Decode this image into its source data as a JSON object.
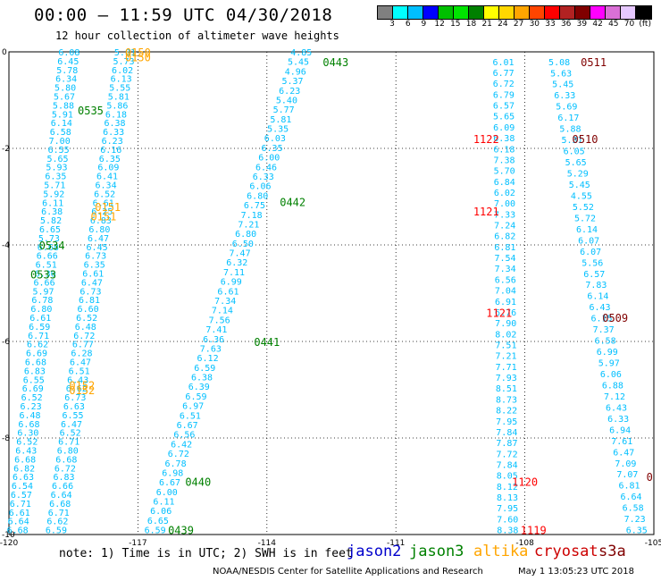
{
  "title": "00:00 – 11:59 UTC 04/30/2018",
  "subtitle": "12 hour collection of altimeter wave heights",
  "colorbar": {
    "colors": [
      "#808080",
      "#00ffff",
      "#00bfff",
      "#0000ff",
      "#00bf00",
      "#00e400",
      "#008000",
      "#ffff00",
      "#ffd700",
      "#ffa500",
      "#ff4500",
      "#ff0000",
      "#b22222",
      "#800000",
      "#ff00ff",
      "#da70d6",
      "#e6c8ff",
      "#000000"
    ],
    "labels": [
      "3",
      "6",
      "9",
      "12",
      "15",
      "18",
      "21",
      "24",
      "27",
      "30",
      "33",
      "36",
      "39",
      "42",
      "45",
      "70",
      "(ft)"
    ]
  },
  "legend": [
    {
      "name": "jason2",
      "color": "#0000cc"
    },
    {
      "name": "jason3",
      "color": "#008000"
    },
    {
      "name": "altika",
      "color": "#ffa500"
    },
    {
      "name": "cryosat",
      "color": "#cc0000"
    },
    {
      "name": "s3a",
      "color": "#800000"
    }
  ],
  "note": "note: 1) Time is in UTC; 2) SWH is in feet",
  "credit": "NOAA/NESDIS Center for Satellite Applications and Research",
  "stamp": "May  1 13:05:23 UTC 2018",
  "chart_data": {
    "type": "scatter",
    "xlim": [
      -120,
      -105
    ],
    "ylim": [
      -10,
      0
    ],
    "x_ticks": [
      "-120",
      "-117",
      "-114",
      "-111",
      "-108",
      "-105"
    ],
    "y_ticks": [
      "0",
      "-2",
      "-4",
      "-6",
      "-8",
      "-10"
    ],
    "grid": true,
    "point_color": "#00bfff",
    "tracks": [
      {
        "x0": -118.6,
        "y0": 0.0,
        "x1": -119.8,
        "y1": -9.9,
        "values": [
          "6.08",
          "6.45",
          "5.78",
          "6.34",
          "5.80",
          "5.67",
          "5.88",
          "5.91",
          "6.14",
          "6.58",
          "7.00",
          "6.55",
          "5.65",
          "5.93",
          "6.35",
          "5.71",
          "5.92",
          "6.11",
          "6.38",
          "5.82",
          "6.65",
          "5.73",
          "6.68",
          "6.66",
          "6.51",
          "6.30",
          "6.66",
          "5.97",
          "6.78",
          "6.80",
          "6.61",
          "6.59",
          "6.71",
          "6.62",
          "6.69",
          "6.68",
          "6.83",
          "6.55",
          "6.69",
          "6.52",
          "6.23",
          "6.48",
          "6.68",
          "6.30",
          "6.52",
          "6.43",
          "6.68",
          "6.82",
          "6.63",
          "6.54",
          "6.57",
          "6.71",
          "6.61",
          "6.64",
          "6.68"
        ]
      },
      {
        "x0": -117.3,
        "y0": 0.0,
        "x1": -118.9,
        "y1": -9.9,
        "values": [
          "5.81",
          "5.73",
          "6.02",
          "6.13",
          "5.55",
          "5.81",
          "5.86",
          "6.18",
          "6.38",
          "6.33",
          "6.23",
          "6.16",
          "6.35",
          "6.09",
          "6.41",
          "6.34",
          "6.52",
          "6.61",
          "6.25",
          "6.83",
          "6.80",
          "6.47",
          "6.45",
          "6.73",
          "6.35",
          "6.61",
          "6.47",
          "6.73",
          "6.81",
          "6.60",
          "6.52",
          "6.48",
          "6.72",
          "6.77",
          "6.28",
          "6.47",
          "6.51",
          "6.43",
          "6.62",
          "6.73",
          "6.63",
          "6.55",
          "6.47",
          "6.52",
          "6.71",
          "6.80",
          "6.68",
          "6.72",
          "6.83",
          "6.66",
          "6.64",
          "6.68",
          "6.71",
          "6.62",
          "6.59"
        ]
      },
      {
        "x0": -113.2,
        "y0": 0.0,
        "x1": -116.6,
        "y1": -9.9,
        "values": [
          "4.85",
          "5.45",
          "4.96",
          "5.37",
          "6.23",
          "5.40",
          "5.77",
          "5.81",
          "5.35",
          "6.03",
          "6.35",
          "6.00",
          "6.46",
          "6.33",
          "6.06",
          "6.80",
          "6.75",
          "7.18",
          "7.21",
          "6.80",
          "6.50",
          "7.47",
          "6.32",
          "7.11",
          "6.99",
          "6.61",
          "7.34",
          "7.14",
          "7.56",
          "7.41",
          "6.36",
          "7.63",
          "6.12",
          "6.59",
          "6.38",
          "6.39",
          "6.59",
          "6.97",
          "6.51",
          "6.67",
          "6.56",
          "6.42",
          "6.72",
          "6.78",
          "6.98",
          "6.67",
          "6.00",
          "6.11",
          "6.06",
          "6.65",
          "6.59"
        ]
      },
      {
        "x0": -108.5,
        "y0": -0.2,
        "x1": -108.4,
        "y1": -9.9,
        "values": [
          "6.01",
          "6.77",
          "6.72",
          "6.79",
          "6.57",
          "5.65",
          "6.09",
          "6.38",
          "6.18",
          "7.38",
          "5.70",
          "6.84",
          "6.02",
          "7.00",
          "7.33",
          "7.24",
          "6.82",
          "6.81",
          "7.54",
          "7.34",
          "6.56",
          "7.04",
          "6.91",
          "6.76",
          "7.90",
          "8.02",
          "7.51",
          "7.21",
          "7.71",
          "7.93",
          "8.51",
          "8.73",
          "8.22",
          "7.95",
          "7.84",
          "7.87",
          "7.72",
          "7.84",
          "8.05",
          "8.12",
          "8.13",
          "7.95",
          "7.60",
          "8.38"
        ]
      },
      {
        "x0": -107.2,
        "y0": -0.2,
        "x1": -105.4,
        "y1": -9.9,
        "values": [
          "5.08",
          "5.63",
          "5.45",
          "6.33",
          "5.69",
          "6.17",
          "5.88",
          "5.31",
          "6.05",
          "5.65",
          "5.29",
          "5.45",
          "4.55",
          "5.52",
          "5.72",
          "6.14",
          "6.07",
          "6.07",
          "5.56",
          "6.57",
          "7.83",
          "6.14",
          "6.43",
          "6.15",
          "7.37",
          "6.58",
          "6.99",
          "5.97",
          "6.06",
          "6.88",
          "7.12",
          "6.43",
          "6.33",
          "6.94",
          "7.61",
          "6.47",
          "7.09",
          "7.07",
          "6.81",
          "6.64",
          "6.58",
          "7.23",
          "6.35"
        ]
      }
    ],
    "pass_labels": [
      {
        "text": "0150",
        "color": "#ffa500",
        "x": -117.0,
        "y": -0.1
      },
      {
        "text": "0150",
        "color": "#ffa500",
        "x": -117.0,
        "y": 0.0
      },
      {
        "text": "0535",
        "color": "#008000",
        "x": -118.1,
        "y": -1.2
      },
      {
        "text": "0151",
        "color": "#ffa500",
        "x": -117.7,
        "y": -3.2
      },
      {
        "text": "0151",
        "color": "#ffa500",
        "x": -117.8,
        "y": -3.4
      },
      {
        "text": "0534",
        "color": "#008000",
        "x": -119.0,
        "y": -4.0
      },
      {
        "text": "0533",
        "color": "#008000",
        "x": -119.2,
        "y": -4.6
      },
      {
        "text": "0152",
        "color": "#ffa500",
        "x": -118.3,
        "y": -6.9
      },
      {
        "text": "0152",
        "color": "#ffa500",
        "x": -118.3,
        "y": -7.0
      },
      {
        "text": "0443",
        "color": "#008000",
        "x": -112.4,
        "y": -0.2
      },
      {
        "text": "0442",
        "color": "#008000",
        "x": -113.4,
        "y": -3.1
      },
      {
        "text": "0441",
        "color": "#008000",
        "x": -114.0,
        "y": -6.0
      },
      {
        "text": "0440",
        "color": "#008000",
        "x": -115.6,
        "y": -8.9
      },
      {
        "text": "0439",
        "color": "#008000",
        "x": -116.0,
        "y": -9.9
      },
      {
        "text": "1122",
        "color": "#ff0000",
        "x": -108.9,
        "y": -1.8
      },
      {
        "text": "1121",
        "color": "#ff0000",
        "x": -108.9,
        "y": -3.3
      },
      {
        "text": "1121",
        "color": "#ff0000",
        "x": -108.6,
        "y": -5.4
      },
      {
        "text": "1120",
        "color": "#ff0000",
        "x": -108.0,
        "y": -8.9
      },
      {
        "text": "1119",
        "color": "#ff0000",
        "x": -107.8,
        "y": -9.9
      },
      {
        "text": "0511",
        "color": "#800000",
        "x": -106.4,
        "y": -0.2
      },
      {
        "text": "0510",
        "color": "#800000",
        "x": -106.6,
        "y": -1.8
      },
      {
        "text": "0509",
        "color": "#800000",
        "x": -105.9,
        "y": -5.5
      },
      {
        "text": "0",
        "color": "#800000",
        "x": -105.1,
        "y": -8.8
      }
    ]
  }
}
